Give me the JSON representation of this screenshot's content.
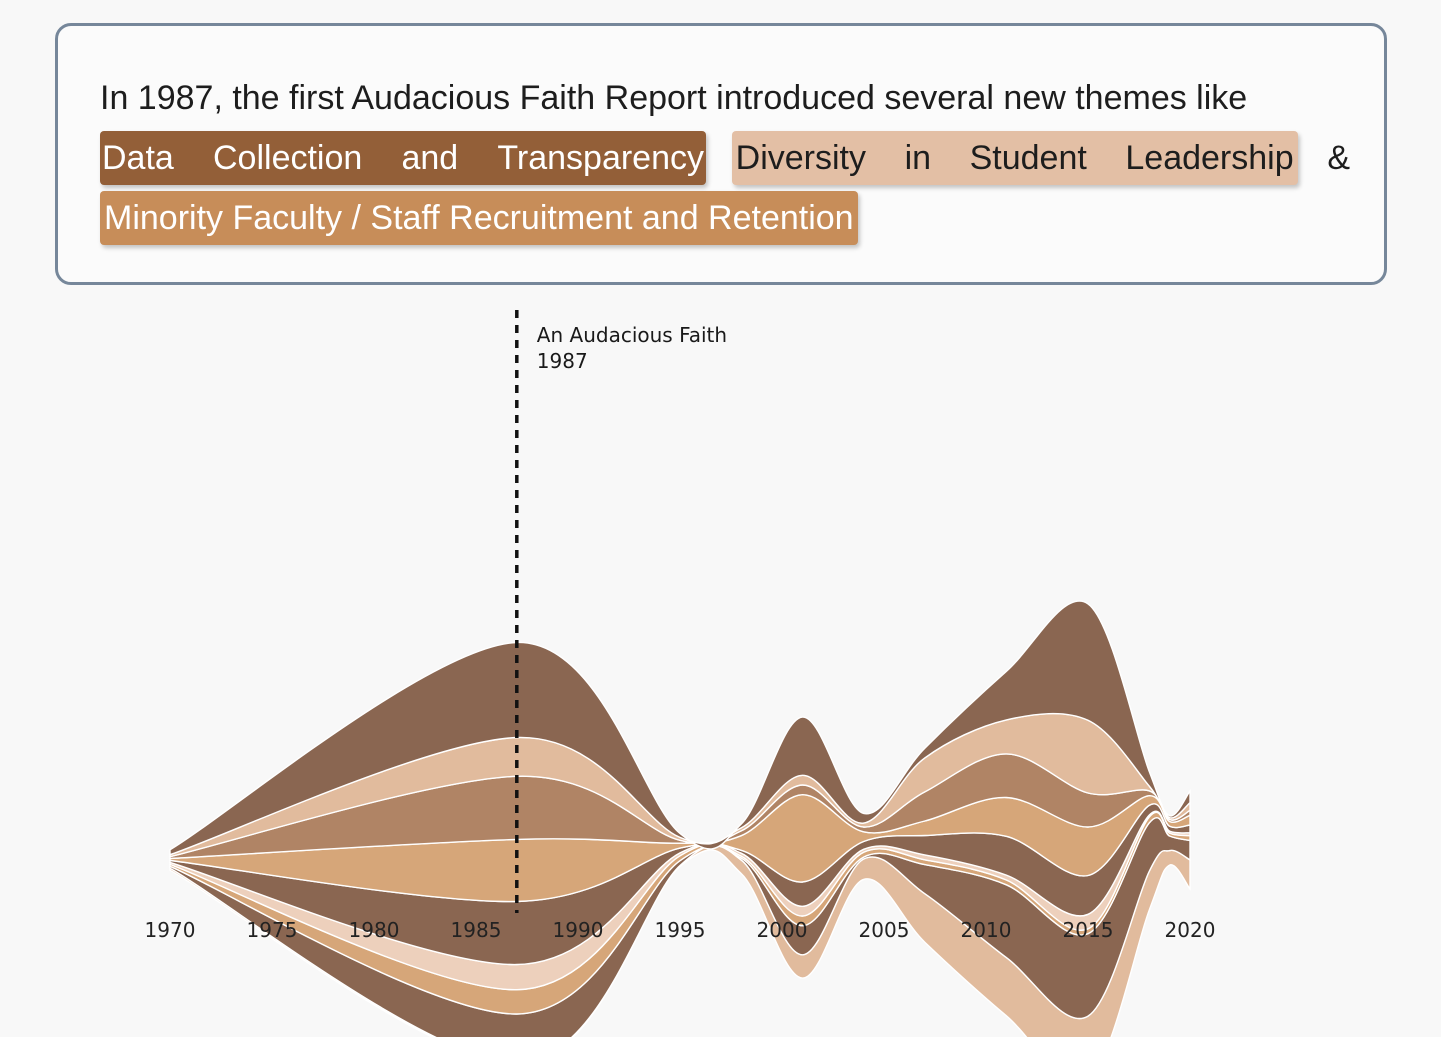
{
  "caption": {
    "intro_text": "In 1987, the first Audacious Faith Report introduced several new themes like",
    "theme_1": {
      "words": [
        "Data",
        "Collection",
        "and",
        "Transparency"
      ],
      "color": "#935f38"
    },
    "theme_2": {
      "words": [
        "Diversity",
        "in",
        "Student",
        "Leadership"
      ],
      "color": "#e3bfa5"
    },
    "conjunction": "&",
    "theme_3": {
      "text": "Minority Faculty / Staff Recruitment and Retention",
      "color": "#c78d59"
    }
  },
  "chart_data": {
    "type": "area",
    "subtype": "streamgraph",
    "title": "",
    "xlabel": "",
    "ylabel": "",
    "xlim": [
      1970,
      2020
    ],
    "x_ticks": [
      "1970",
      "1975",
      "1980",
      "1985",
      "1990",
      "1995",
      "2000",
      "2005",
      "2010",
      "2015",
      "2020"
    ],
    "annotation": {
      "x": 1987,
      "label_line_1": "An Audacious Faith",
      "label_line_2": "1987",
      "style": "dashed vertical line"
    },
    "x": [
      1970,
      1987,
      1995,
      1998,
      2001,
      2004,
      2007,
      2011,
      2015,
      2018,
      2019,
      2020
    ],
    "series": [
      {
        "color": "#e1bb9d",
        "values": [
          0.2,
          0.15,
          0.1,
          1.4,
          2.4,
          2.1,
          5.0,
          6.0,
          6.6,
          4.0,
          1.5,
          3.0
        ]
      },
      {
        "color": "#8a6651",
        "values": [
          0.2,
          5.0,
          0.5,
          0.2,
          3.0,
          0.2,
          3.0,
          7.5,
          8.5,
          5.0,
          1.5,
          2.0
        ]
      },
      {
        "color": "#d6a679",
        "values": [
          0.2,
          2.5,
          0.5,
          0.2,
          1.0,
          0.5,
          0.5,
          0.5,
          0.5,
          0.6,
          0.3,
          0.5
        ]
      },
      {
        "color": "#edd0bc",
        "values": [
          0.2,
          2.6,
          0.3,
          0.3,
          1.0,
          0.3,
          0.5,
          0.5,
          1.5,
          0.2,
          0.2,
          0.3
        ]
      },
      {
        "color": "#8a6651",
        "values": [
          0.2,
          6.5,
          0.5,
          0.3,
          2.5,
          0.8,
          2.0,
          4.0,
          4.0,
          1.0,
          0.5,
          0.8
        ]
      },
      {
        "color": "#d6a679",
        "values": [
          0.2,
          6.4,
          0.5,
          1.5,
          9.0,
          1.0,
          1.5,
          4.0,
          5.0,
          1.0,
          0.5,
          1.0
        ]
      },
      {
        "color": "#b08465",
        "values": [
          0.2,
          6.5,
          0.3,
          0.5,
          1.0,
          0.5,
          3.0,
          4.5,
          3.5,
          0.5,
          0.2,
          0.5
        ]
      },
      {
        "color": "#e1bb9d",
        "values": [
          0.2,
          4.0,
          0.3,
          0.3,
          1.0,
          0.4,
          3.5,
          3.5,
          7.5,
          0.5,
          0.2,
          0.8
        ]
      },
      {
        "color": "#8a6651",
        "values": [
          0.5,
          9.8,
          0.4,
          0.4,
          6.0,
          1.0,
          1.0,
          5.0,
          12.0,
          1.5,
          0.2,
          1.2
        ]
      }
    ]
  }
}
